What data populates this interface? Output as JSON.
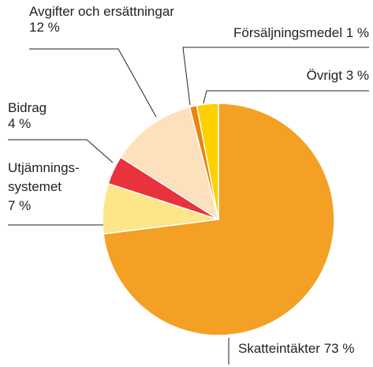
{
  "chart_data": {
    "type": "pie",
    "categories": [
      [
        "Skatteintäkter"
      ],
      [
        "Utjämnings-",
        "systemet"
      ],
      [
        "Bidrag"
      ],
      [
        "Avgifter och ersättningar"
      ],
      [
        "Försäljningsmedel"
      ],
      [
        "Övrigt"
      ]
    ],
    "values": [
      73,
      7,
      4,
      12,
      1,
      3
    ],
    "value_labels": [
      "73 %",
      "7 %",
      "4 %",
      "12 %",
      "1 %",
      "3 %"
    ],
    "colors": [
      "#f4a024",
      "#fde58a",
      "#e8323c",
      "#fde0bc",
      "#e8850c",
      "#fdd000"
    ]
  }
}
